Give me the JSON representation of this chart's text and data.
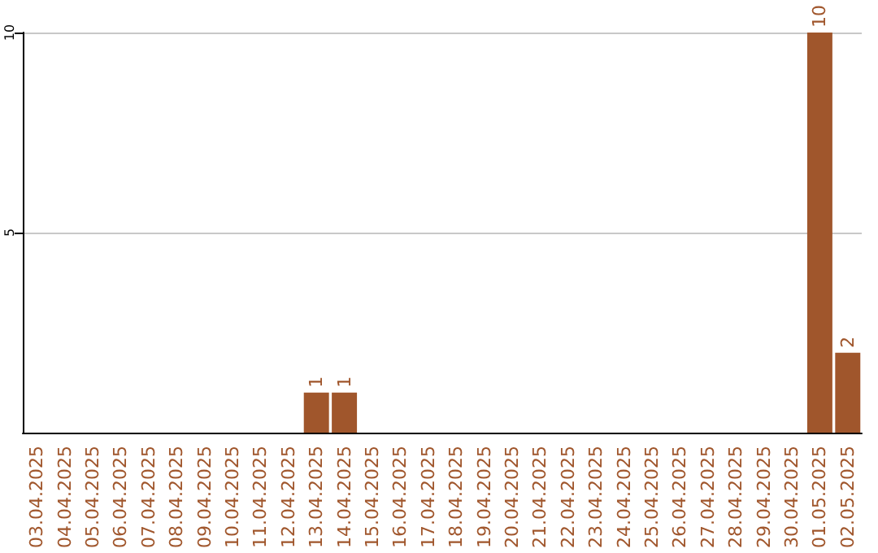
{
  "chart_data": {
    "type": "bar",
    "categories": [
      "03.04.2025",
      "04.04.2025",
      "05.04.2025",
      "06.04.2025",
      "07.04.2025",
      "08.04.2025",
      "09.04.2025",
      "10.04.2025",
      "11.04.2025",
      "12.04.2025",
      "13.04.2025",
      "14.04.2025",
      "15.04.2025",
      "16.04.2025",
      "17.04.2025",
      "18.04.2025",
      "19.04.2025",
      "20.04.2025",
      "21.04.2025",
      "22.04.2025",
      "23.04.2025",
      "24.04.2025",
      "25.04.2025",
      "26.04.2025",
      "27.04.2025",
      "28.04.2025",
      "29.04.2025",
      "30.04.2025",
      "01.05.2025",
      "02.05.2025"
    ],
    "values": [
      0,
      0,
      0,
      0,
      0,
      0,
      0,
      0,
      0,
      0,
      1,
      1,
      0,
      0,
      0,
      0,
      0,
      0,
      0,
      0,
      0,
      0,
      0,
      0,
      0,
      0,
      0,
      0,
      10,
      2
    ],
    "value_labels": [
      null,
      null,
      null,
      null,
      null,
      null,
      null,
      null,
      null,
      null,
      "1",
      "1",
      null,
      null,
      null,
      null,
      null,
      null,
      null,
      null,
      null,
      null,
      null,
      null,
      null,
      null,
      null,
      null,
      "10",
      "2"
    ],
    "color": "#a0562c",
    "ylim": [
      0,
      10
    ],
    "yticks": [
      5,
      10
    ],
    "grid": "y"
  }
}
